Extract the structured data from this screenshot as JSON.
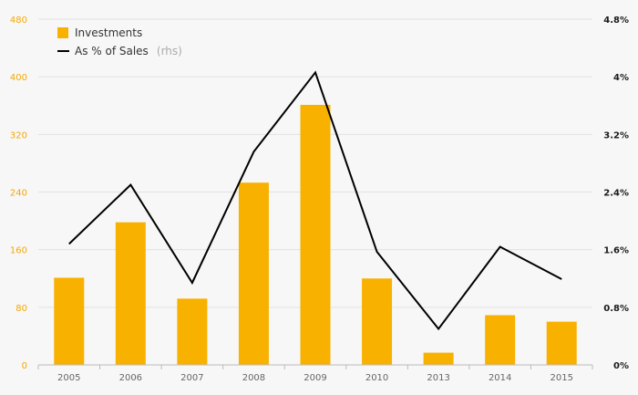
{
  "chart_data": {
    "type": "bar",
    "categories": [
      "2005",
      "2006",
      "2007",
      "2008",
      "2009",
      "2010",
      "2013",
      "2014",
      "2015"
    ],
    "series": [
      {
        "name": "Investments",
        "kind": "bar",
        "axis": "left",
        "color": "#f9b100",
        "values": [
          121,
          198,
          92,
          253,
          361,
          120,
          17,
          69,
          60
        ]
      },
      {
        "name": "As % of Sales",
        "name_note": "(rhs)",
        "kind": "line",
        "axis": "right",
        "color": "#000000",
        "values": [
          1.68,
          2.5,
          1.14,
          2.96,
          4.06,
          1.57,
          0.5,
          1.64,
          1.19
        ]
      }
    ],
    "ylim": [
      0,
      480
    ],
    "yticks": [
      "0",
      "80",
      "160",
      "240",
      "320",
      "400",
      "480"
    ],
    "y2lim": [
      0,
      4.8
    ],
    "y2ticks": [
      "0%",
      "0.8%",
      "1.6%",
      "2.4%",
      "3.2%",
      "4%",
      "4.8%"
    ],
    "grid": true,
    "legend_position": "top-left"
  }
}
